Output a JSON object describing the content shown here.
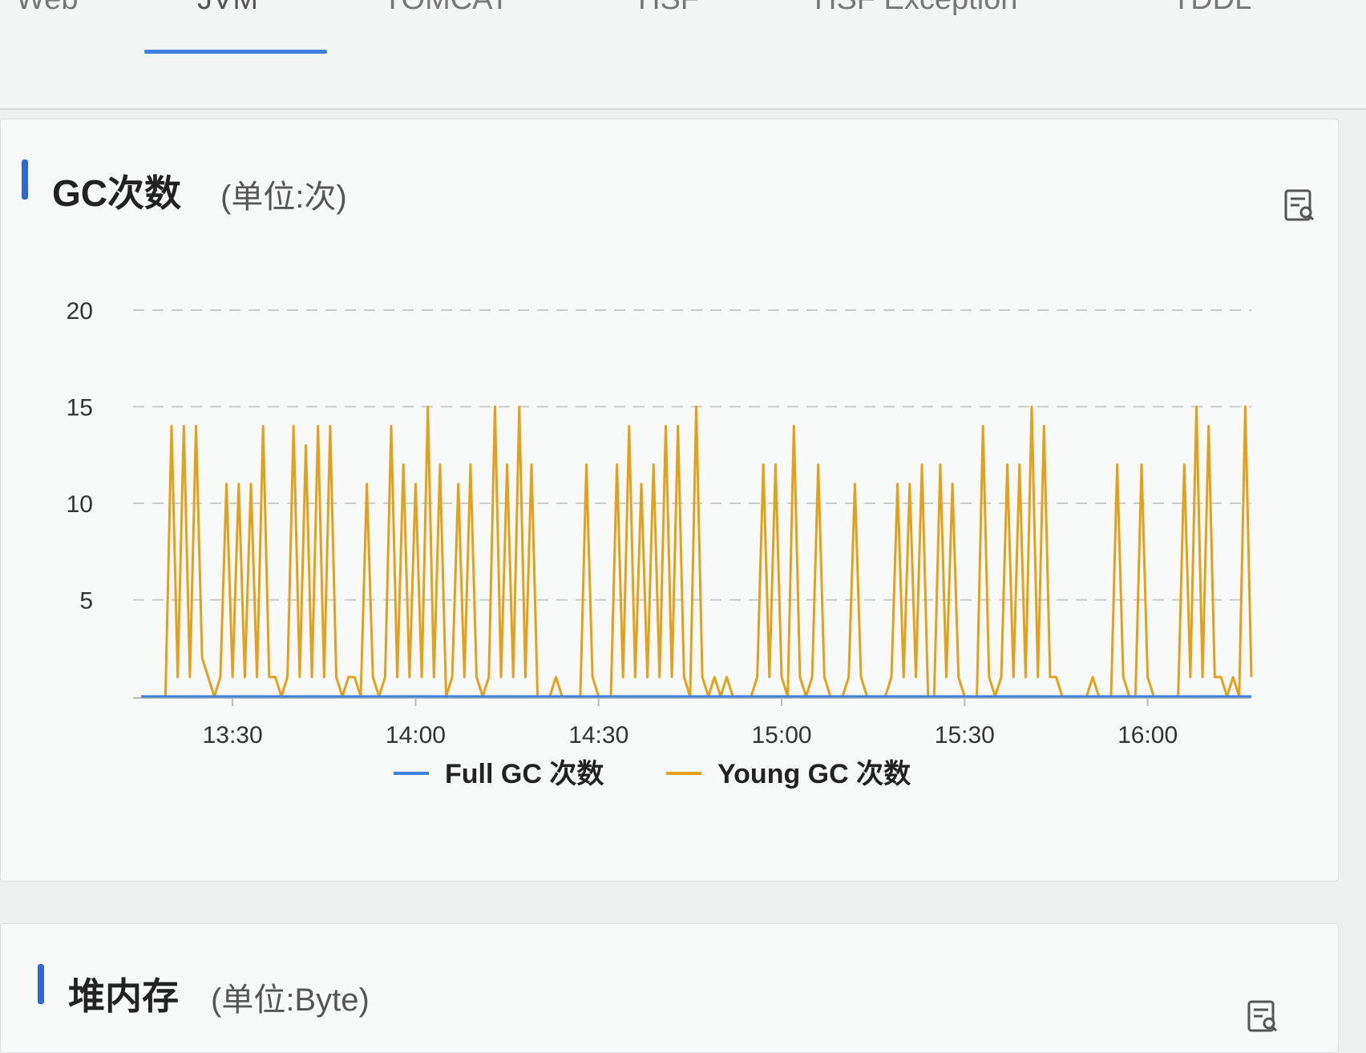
{
  "tabs": {
    "items": [
      "Web",
      "JVM",
      "TOMCAT",
      "HSF",
      "HSF Exception",
      "TDDL"
    ],
    "active_index": 1
  },
  "gc_panel": {
    "title": "GC次数",
    "unit": "(单位:次)",
    "export_icon": "export-icon"
  },
  "heap_panel": {
    "title": "堆内存",
    "unit": "(单位:Byte)",
    "export_icon": "export-icon"
  },
  "colors": {
    "full_gc": "#3f7fd9",
    "young_gc": "#e3a01b",
    "accent": "#2f66d8"
  },
  "chart_data": {
    "type": "line",
    "x_ticks": [
      "13:30",
      "14:00",
      "14:30",
      "15:00",
      "15:30",
      "16:00"
    ],
    "x_tick_minutes": [
      810,
      840,
      870,
      900,
      930,
      960
    ],
    "x_range_minutes": [
      795,
      977
    ],
    "ylim": [
      0,
      20
    ],
    "y_ticks": [
      5,
      10,
      15,
      20
    ],
    "grid": true,
    "legend": "bottom-center",
    "series": [
      {
        "name": "Full GC 次数",
        "points": [
          [
            795,
            0
          ],
          [
            977,
            0
          ]
        ]
      },
      {
        "name": "Young GC 次数",
        "points": [
          [
            795,
            0
          ],
          [
            799,
            0
          ],
          [
            800,
            14
          ],
          [
            801,
            1
          ],
          [
            802,
            14
          ],
          [
            803,
            1
          ],
          [
            804,
            14
          ],
          [
            805,
            2
          ],
          [
            806,
            1
          ],
          [
            807,
            0
          ],
          [
            808,
            1
          ],
          [
            809,
            11
          ],
          [
            810,
            1
          ],
          [
            811,
            11
          ],
          [
            812,
            1
          ],
          [
            813,
            11
          ],
          [
            814,
            1
          ],
          [
            815,
            14
          ],
          [
            816,
            1
          ],
          [
            817,
            1
          ],
          [
            818,
            0
          ],
          [
            819,
            1
          ],
          [
            820,
            14
          ],
          [
            821,
            1
          ],
          [
            822,
            13
          ],
          [
            823,
            1
          ],
          [
            824,
            14
          ],
          [
            825,
            1
          ],
          [
            826,
            14
          ],
          [
            827,
            1
          ],
          [
            828,
            0
          ],
          [
            829,
            1
          ],
          [
            830,
            1
          ],
          [
            831,
            0
          ],
          [
            832,
            11
          ],
          [
            833,
            1
          ],
          [
            834,
            0
          ],
          [
            835,
            1
          ],
          [
            836,
            14
          ],
          [
            837,
            1
          ],
          [
            838,
            12
          ],
          [
            839,
            1
          ],
          [
            840,
            11
          ],
          [
            841,
            1
          ],
          [
            842,
            15
          ],
          [
            843,
            1
          ],
          [
            844,
            12
          ],
          [
            845,
            0
          ],
          [
            846,
            1
          ],
          [
            847,
            11
          ],
          [
            848,
            1
          ],
          [
            849,
            12
          ],
          [
            850,
            1
          ],
          [
            851,
            0
          ],
          [
            852,
            1
          ],
          [
            853,
            15
          ],
          [
            854,
            1
          ],
          [
            855,
            12
          ],
          [
            856,
            1
          ],
          [
            857,
            15
          ],
          [
            858,
            1
          ],
          [
            859,
            12
          ],
          [
            860,
            0
          ],
          [
            861,
            0
          ],
          [
            862,
            0
          ],
          [
            863,
            1
          ],
          [
            864,
            0
          ],
          [
            865,
            0
          ],
          [
            866,
            0
          ],
          [
            867,
            0
          ],
          [
            868,
            12
          ],
          [
            869,
            1
          ],
          [
            870,
            0
          ],
          [
            871,
            0
          ],
          [
            872,
            0
          ],
          [
            873,
            12
          ],
          [
            874,
            1
          ],
          [
            875,
            14
          ],
          [
            876,
            1
          ],
          [
            877,
            11
          ],
          [
            878,
            1
          ],
          [
            879,
            12
          ],
          [
            880,
            1
          ],
          [
            881,
            14
          ],
          [
            882,
            1
          ],
          [
            883,
            14
          ],
          [
            884,
            1
          ],
          [
            885,
            0
          ],
          [
            886,
            15
          ],
          [
            887,
            1
          ],
          [
            888,
            0
          ],
          [
            889,
            1
          ],
          [
            890,
            0
          ],
          [
            891,
            1
          ],
          [
            892,
            0
          ],
          [
            893,
            0
          ],
          [
            894,
            0
          ],
          [
            895,
            0
          ],
          [
            896,
            1
          ],
          [
            897,
            12
          ],
          [
            898,
            1
          ],
          [
            899,
            12
          ],
          [
            900,
            1
          ],
          [
            901,
            0
          ],
          [
            902,
            14
          ],
          [
            903,
            1
          ],
          [
            904,
            0
          ],
          [
            905,
            1
          ],
          [
            906,
            12
          ],
          [
            907,
            1
          ],
          [
            908,
            0
          ],
          [
            909,
            0
          ],
          [
            910,
            0
          ],
          [
            911,
            1
          ],
          [
            912,
            11
          ],
          [
            913,
            1
          ],
          [
            914,
            0
          ],
          [
            915,
            0
          ],
          [
            916,
            0
          ],
          [
            917,
            0
          ],
          [
            918,
            1
          ],
          [
            919,
            11
          ],
          [
            920,
            1
          ],
          [
            921,
            11
          ],
          [
            922,
            1
          ],
          [
            923,
            12
          ],
          [
            924,
            0
          ],
          [
            925,
            0
          ],
          [
            926,
            12
          ],
          [
            927,
            1
          ],
          [
            928,
            11
          ],
          [
            929,
            1
          ],
          [
            930,
            0
          ],
          [
            931,
            0
          ],
          [
            932,
            0
          ],
          [
            933,
            14
          ],
          [
            934,
            1
          ],
          [
            935,
            0
          ],
          [
            936,
            1
          ],
          [
            937,
            12
          ],
          [
            938,
            1
          ],
          [
            939,
            12
          ],
          [
            940,
            1
          ],
          [
            941,
            15
          ],
          [
            942,
            1
          ],
          [
            943,
            14
          ],
          [
            944,
            1
          ],
          [
            945,
            1
          ],
          [
            946,
            0
          ],
          [
            947,
            0
          ],
          [
            948,
            0
          ],
          [
            949,
            0
          ],
          [
            950,
            0
          ],
          [
            951,
            1
          ],
          [
            952,
            0
          ],
          [
            953,
            0
          ],
          [
            954,
            0
          ],
          [
            955,
            12
          ],
          [
            956,
            1
          ],
          [
            957,
            0
          ],
          [
            958,
            0
          ],
          [
            959,
            12
          ],
          [
            960,
            1
          ],
          [
            961,
            0
          ],
          [
            962,
            0
          ],
          [
            963,
            0
          ],
          [
            964,
            0
          ],
          [
            965,
            0
          ],
          [
            966,
            12
          ],
          [
            967,
            1
          ],
          [
            968,
            15
          ],
          [
            969,
            1
          ],
          [
            970,
            14
          ],
          [
            971,
            1
          ],
          [
            972,
            1
          ],
          [
            973,
            0
          ],
          [
            974,
            1
          ],
          [
            975,
            0
          ],
          [
            976,
            15
          ],
          [
            977,
            1
          ]
        ]
      }
    ]
  }
}
